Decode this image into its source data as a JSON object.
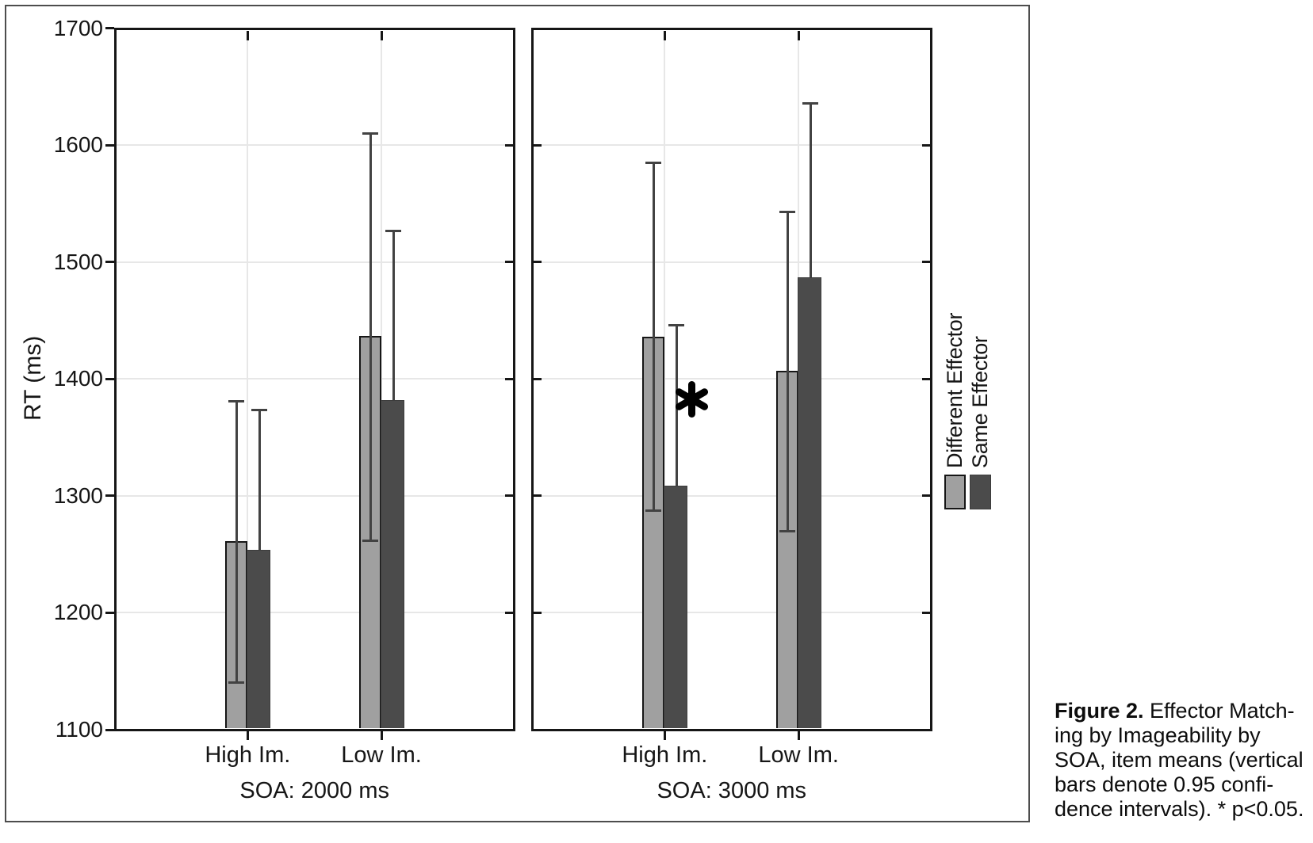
{
  "caption": {
    "bold_prefix": "Figure 2.",
    "line1_rest": " Effector Match-",
    "lines": [
      "ing by Imageability by",
      "SOA, item means (vertical",
      "bars denote 0.95 confi-",
      "dence intervals). * p<0.05."
    ]
  },
  "chart_data": {
    "type": "bar",
    "ylabel": "RT (ms)",
    "ylim": [
      1100,
      1700
    ],
    "yticks": [
      1100,
      1200,
      1300,
      1400,
      1500,
      1600,
      1700
    ],
    "grid": "light horizontal gridlines at ticks and light vertical gridlines at category centers",
    "error_bars": "0.95 confidence intervals",
    "annotation_note": "* p<0.05",
    "legend": {
      "position": "right-outside, labels rotated 90deg",
      "entries": [
        {
          "label": "Different Effector",
          "color": "#a0a0a0"
        },
        {
          "label": "Same Effector",
          "color": "#4b4b4b"
        }
      ]
    },
    "panels": [
      {
        "soa_label": "SOA: 2000 ms",
        "categories": [
          "High Im.",
          "Low Im."
        ],
        "groups": [
          {
            "category": "High Im.",
            "annotation": null,
            "bars": [
              {
                "series": "Different Effector",
                "mean": 1261,
                "ci_low": 1141,
                "ci_high": 1381
              },
              {
                "series": "Same Effector",
                "mean": 1254,
                "ci_low": null,
                "ci_high": 1374
              }
            ]
          },
          {
            "category": "Low Im.",
            "annotation": null,
            "bars": [
              {
                "series": "Different Effector",
                "mean": 1437,
                "ci_low": 1262,
                "ci_high": 1610
              },
              {
                "series": "Same Effector",
                "mean": 1382,
                "ci_low": null,
                "ci_high": 1527
              }
            ]
          }
        ]
      },
      {
        "soa_label": "SOA: 3000 ms",
        "categories": [
          "High Im.",
          "Low Im."
        ],
        "groups": [
          {
            "category": "High Im.",
            "annotation": "*",
            "bars": [
              {
                "series": "Different Effector",
                "mean": 1436,
                "ci_low": 1288,
                "ci_high": 1585
              },
              {
                "series": "Same Effector",
                "mean": 1309,
                "ci_low": null,
                "ci_high": 1446
              }
            ]
          },
          {
            "category": "Low Im.",
            "annotation": null,
            "bars": [
              {
                "series": "Different Effector",
                "mean": 1407,
                "ci_low": 1270,
                "ci_high": 1543
              },
              {
                "series": "Same Effector",
                "mean": 1487,
                "ci_low": null,
                "ci_high": 1636
              }
            ]
          }
        ]
      }
    ]
  }
}
